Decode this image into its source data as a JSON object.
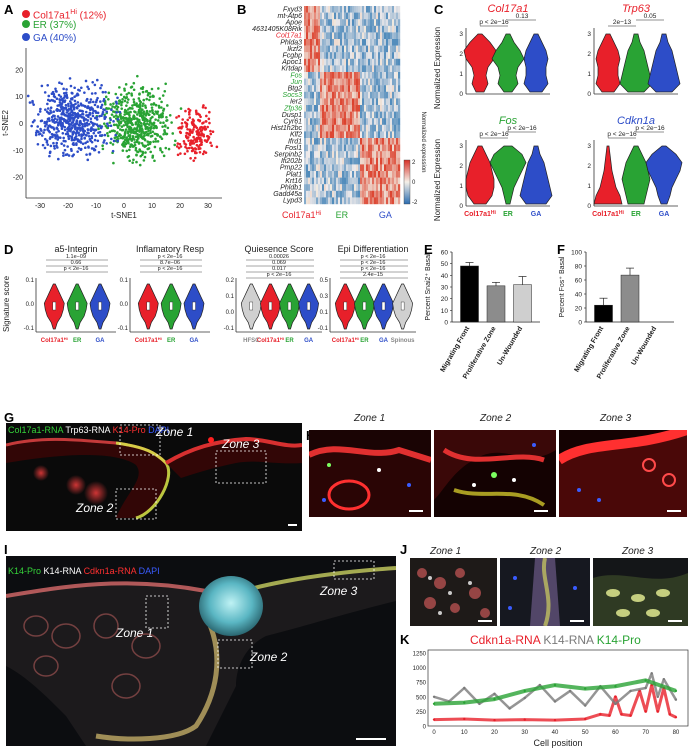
{
  "panels": {
    "A": "A",
    "B": "B",
    "C": "C",
    "D": "D",
    "E": "E",
    "F": "F",
    "G": "G",
    "H": "H",
    "I": "I",
    "J": "J",
    "K": "K"
  },
  "tsne": {
    "legend": [
      {
        "label": "Col17a1",
        "sup": "Hi",
        "pct": " (12%)",
        "color": "#e8202a"
      },
      {
        "label": "ER",
        "sup": "",
        "pct": " (37%)",
        "color": "#29a334"
      },
      {
        "label": "GA",
        "sup": "",
        "pct": " (40%)",
        "color": "#2d4dc8"
      }
    ],
    "xlabel": "t-SNE1",
    "ylabel": "t-SNE2",
    "xticks": [
      "-30",
      "-20",
      "-10",
      "0",
      "10",
      "20",
      "30"
    ],
    "yticks": [
      "20",
      "10",
      "0",
      "-10",
      "-20"
    ]
  },
  "heatmap": {
    "genes": [
      {
        "name": "Fxyd3",
        "color": "#222"
      },
      {
        "name": "mt-Atp6",
        "color": "#222"
      },
      {
        "name": "Apoe",
        "color": "#222"
      },
      {
        "name": "4631405K08Rik",
        "color": "#222"
      },
      {
        "name": "Col17a1",
        "color": "#e8202a"
      },
      {
        "name": "Phlda3",
        "color": "#222"
      },
      {
        "name": "Ikzf2",
        "color": "#222"
      },
      {
        "name": "Fcgbp",
        "color": "#222"
      },
      {
        "name": "Apoc1",
        "color": "#222"
      },
      {
        "name": "Krtdap",
        "color": "#222"
      },
      {
        "name": "Fos",
        "color": "#29a334"
      },
      {
        "name": "Jun",
        "color": "#29a334"
      },
      {
        "name": "Btg2",
        "color": "#222"
      },
      {
        "name": "Socs3",
        "color": "#29a334"
      },
      {
        "name": "Ier2",
        "color": "#222"
      },
      {
        "name": "Zfp36",
        "color": "#29a334"
      },
      {
        "name": "Dusp1",
        "color": "#222"
      },
      {
        "name": "Cyr61",
        "color": "#222"
      },
      {
        "name": "Hist1h2bc",
        "color": "#222"
      },
      {
        "name": "Klf2",
        "color": "#222"
      },
      {
        "name": "Ifrd1",
        "color": "#222"
      },
      {
        "name": "Fosl1",
        "color": "#222"
      },
      {
        "name": "Serpinb2",
        "color": "#222"
      },
      {
        "name": "Ifi202b",
        "color": "#222"
      },
      {
        "name": "Pmp22",
        "color": "#222"
      },
      {
        "name": "Plat1",
        "color": "#222"
      },
      {
        "name": "Krt16",
        "color": "#222"
      },
      {
        "name": "Phldb1",
        "color": "#222"
      },
      {
        "name": "Gadd45a",
        "color": "#222"
      },
      {
        "name": "Lypd3",
        "color": "#222"
      }
    ],
    "colorbar_label": "Normalized expression",
    "colorbar_ticks": [
      "2",
      "0",
      "-2"
    ],
    "groups": [
      {
        "label": "Col17a1",
        "sup": "Hi",
        "color": "#e8202a"
      },
      {
        "label": "ER",
        "sup": "",
        "color": "#29a334"
      },
      {
        "label": "GA",
        "sup": "",
        "color": "#2d4dc8"
      }
    ]
  },
  "violinC": {
    "titles": [
      {
        "text": "Col17a1",
        "color": "#e8202a"
      },
      {
        "text": "Trp63",
        "color": "#e8202a"
      },
      {
        "text": "Fos",
        "color": "#29a334"
      },
      {
        "text": "Cdkn1a",
        "color": "#2d4dc8"
      }
    ],
    "ylabel": "Normalized Expression",
    "stats": [
      {
        "a": "p < 2e−16",
        "b": "0.13"
      },
      {
        "a": "2e−13",
        "b": "0.05"
      },
      {
        "a": "p < 2e−16",
        "b": "p < 2e−16"
      },
      {
        "a": "p < 2e−16",
        "b": "p < 2e−16"
      }
    ],
    "xlabels": [
      {
        "label": "Col17a1",
        "sup": "Hi",
        "color": "#e8202a"
      },
      {
        "label": "ER",
        "sup": "",
        "color": "#29a334"
      },
      {
        "label": "GA",
        "sup": "",
        "color": "#2d4dc8"
      }
    ]
  },
  "violinD": {
    "ylabel": "Signature score",
    "plots": [
      {
        "title": "a5-Integrin",
        "stats": [
          "1.1e−09",
          "0.66",
          "p < 2e−16"
        ],
        "yticks": [
          "0.1",
          "0.0",
          "-0.1"
        ]
      },
      {
        "title": "Inflamatory Resp",
        "stats": [
          "p < 2e−16",
          "8.7e−06",
          "p < 2e−16"
        ],
        "yticks": [
          "0.1",
          "0.0",
          "-0.1"
        ]
      },
      {
        "title": "Quiesence Score",
        "stats": [
          "0.00026",
          "0.069",
          "0.017",
          "p < 2e−16"
        ],
        "yticks": [
          "0.2",
          "0.1",
          "0.0",
          "-0.1"
        ]
      },
      {
        "title": "Epi Differentiation",
        "stats": [
          "p < 2e−16",
          "p < 2e−16",
          "p < 2e−16",
          "2.4e−15"
        ],
        "yticks": [
          "0.5",
          "0.3",
          "0.1",
          "-0.1"
        ]
      }
    ],
    "group_labels": [
      "Col17a1",
      "ER",
      "GA"
    ],
    "hfsc": "HFSC",
    "spinous": "Spinous"
  },
  "barE": {
    "ylabel": "Percent Snai2⁺ Basal",
    "yticks": [
      "0",
      "10",
      "20",
      "30",
      "40",
      "50",
      "60"
    ],
    "categories": [
      "Migrating Front",
      "Proliferative Zone",
      "Un-Wounded"
    ]
  },
  "barF": {
    "ylabel": "Percent Fos⁺ Basal",
    "yticks": [
      "0",
      "20",
      "40",
      "60",
      "80",
      "100"
    ],
    "categories": [
      "Migrating Front",
      "Proliferative Zone",
      "Un-Wounded"
    ]
  },
  "imgG": {
    "legend": [
      {
        "text": "Col17a1-RNA ",
        "color": "#35d23a"
      },
      {
        "text": "Trp63-RNA ",
        "color": "#ffffff"
      },
      {
        "text": "K14-Pro ",
        "color": "#ff3030"
      },
      {
        "text": "DAPI",
        "color": "#3a5cff"
      }
    ],
    "zones": [
      "Zone 1",
      "Zone 2",
      "Zone 3"
    ]
  },
  "imgH": {
    "titles": [
      "Zone 1",
      "Zone 2",
      "Zone 3"
    ]
  },
  "imgI": {
    "legend": [
      {
        "text": "K14-Pro ",
        "color": "#35d23a"
      },
      {
        "text": "K14-RNA ",
        "color": "#ffffff"
      },
      {
        "text": "Cdkn1a-RNA ",
        "color": "#ff3030"
      },
      {
        "text": "DAPI",
        "color": "#3a5cff"
      }
    ],
    "zones": [
      "Zone 1",
      "Zone 2",
      "Zone 3"
    ]
  },
  "imgJ": {
    "titles": [
      "Zone 1",
      "Zone 2",
      "Zone 3"
    ]
  },
  "chart_data": [
    {
      "type": "scatter",
      "title": "",
      "xlabel": "t-SNE1",
      "ylabel": "t-SNE2",
      "xlim": [
        -35,
        35
      ],
      "ylim": [
        -28,
        28
      ],
      "series": [
        {
          "name": "Col17a1Hi (12%)",
          "color": "#e8202a",
          "center": [
            26,
            -4
          ]
        },
        {
          "name": "ER (37%)",
          "color": "#29a334",
          "center": [
            5,
            0
          ]
        },
        {
          "name": "GA (40%)",
          "color": "#2d4dc8",
          "center": [
            -18,
            1
          ]
        }
      ]
    },
    {
      "type": "bar",
      "categories": [
        "Migrating Front",
        "Proliferative Zone",
        "Un-Wounded"
      ],
      "values": [
        48,
        31,
        32
      ],
      "errors": [
        3,
        3,
        7
      ],
      "ylabel": "Percent Snai2⁺ Basal",
      "ylim": [
        0,
        60
      ],
      "colors": [
        "#000000",
        "#8c8c8c",
        "#cfcfcf"
      ]
    },
    {
      "type": "bar",
      "categories": [
        "Migrating Front",
        "Proliferative Zone",
        "Un-Wounded"
      ],
      "values": [
        24,
        67,
        0
      ],
      "errors": [
        10,
        10,
        0
      ],
      "ylabel": "Percent Fos⁺ Basal",
      "ylim": [
        0,
        100
      ],
      "colors": [
        "#000000",
        "#8c8c8c",
        "#cfcfcf"
      ]
    },
    {
      "type": "line",
      "xlabel": "Cell position",
      "xticks": [
        0,
        10,
        20,
        30,
        40,
        50,
        60,
        70,
        80
      ],
      "yticks": [
        0,
        250,
        500,
        750,
        1000,
        1250
      ],
      "ylim": [
        0,
        1300
      ],
      "xlim": [
        -2,
        84
      ],
      "series": [
        {
          "name": "Cdkn1a-RNA",
          "color": "#e8202a",
          "x": [
            0,
            10,
            20,
            30,
            40,
            50,
            55,
            58,
            60,
            62,
            65,
            68,
            70,
            72,
            74,
            76,
            78,
            80
          ],
          "y": [
            110,
            120,
            100,
            110,
            100,
            120,
            200,
            180,
            500,
            200,
            180,
            600,
            250,
            700,
            250,
            650,
            200,
            150
          ]
        },
        {
          "name": "K14-RNA",
          "color": "#7a7a7a",
          "x": [
            0,
            5,
            10,
            15,
            20,
            25,
            30,
            35,
            40,
            45,
            50,
            55,
            60,
            65,
            70,
            72,
            74,
            76,
            80
          ],
          "y": [
            500,
            420,
            650,
            380,
            550,
            300,
            480,
            700,
            420,
            600,
            350,
            680,
            380,
            600,
            650,
            900,
            500,
            800,
            450
          ]
        },
        {
          "name": "K14-Pro",
          "color": "#29a334",
          "x": [
            0,
            10,
            20,
            30,
            40,
            50,
            60,
            70,
            80
          ],
          "y": [
            380,
            400,
            460,
            600,
            700,
            640,
            680,
            780,
            600
          ]
        }
      ]
    }
  ]
}
